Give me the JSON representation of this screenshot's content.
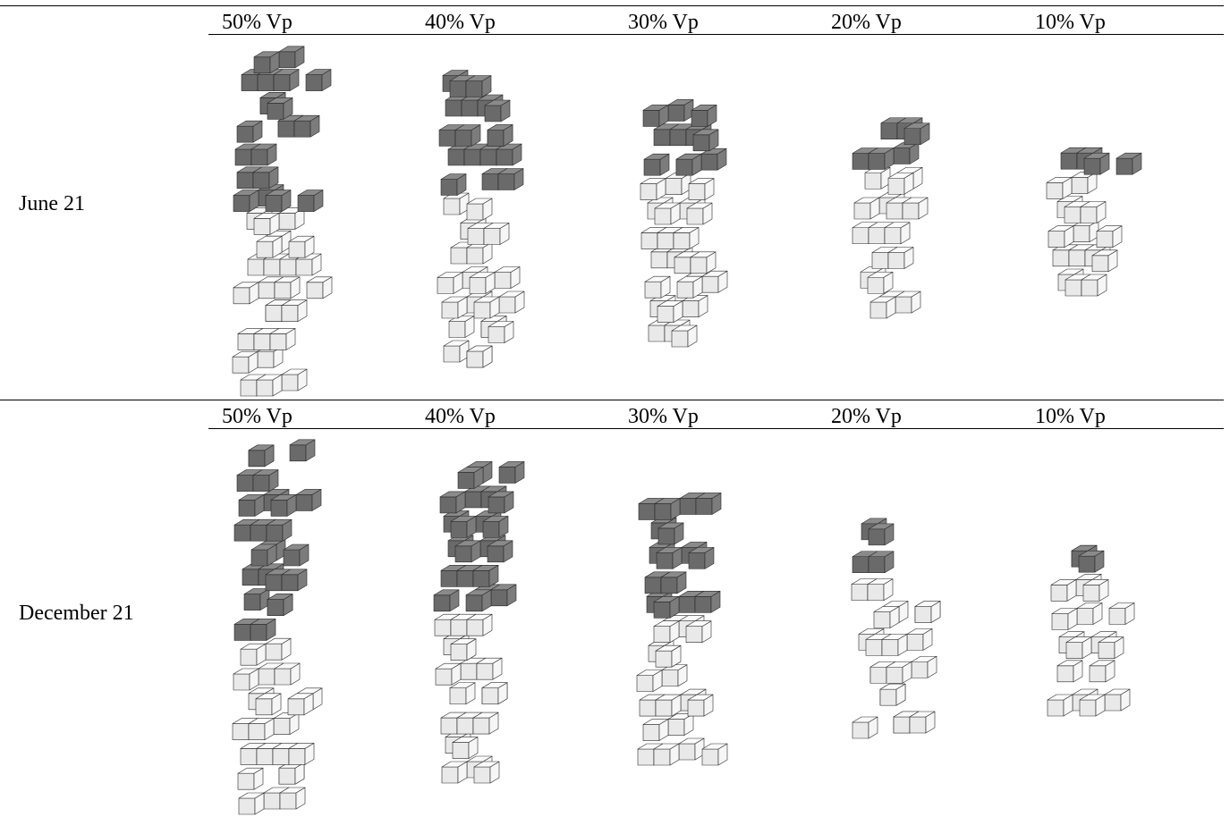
{
  "columns": [
    {
      "label": "50% Vp"
    },
    {
      "label": "40% Vp"
    },
    {
      "label": "30% Vp"
    },
    {
      "label": "20% Vp"
    },
    {
      "label": "10% Vp"
    }
  ],
  "rows": [
    {
      "label": "June 21",
      "models": [
        {
          "label": "50% Vp",
          "shaded_levels": 7,
          "unshaded_levels": 8
        },
        {
          "label": "40% Vp",
          "shaded_levels": 5,
          "unshaded_levels": 7
        },
        {
          "label": "30% Vp",
          "shaded_levels": 3,
          "unshaded_levels": 7
        },
        {
          "label": "20% Vp",
          "shaded_levels": 2,
          "unshaded_levels": 6
        },
        {
          "label": "10% Vp",
          "shaded_levels": 1,
          "unshaded_levels": 5
        }
      ]
    },
    {
      "label": "December 21",
      "models": [
        {
          "label": "50% Vp",
          "shaded_levels": 8,
          "unshaded_levels": 7
        },
        {
          "label": "40% Vp",
          "shaded_levels": 6,
          "unshaded_levels": 7
        },
        {
          "label": "30% Vp",
          "shaded_levels": 5,
          "unshaded_levels": 6
        },
        {
          "label": "20% Vp",
          "shaded_levels": 2,
          "unshaded_levels": 6
        },
        {
          "label": "10% Vp",
          "shaded_levels": 1,
          "unshaded_levels": 5
        }
      ]
    }
  ],
  "colors": {
    "shaded_top": "#8a8a8a",
    "shaded_left": "#6a6a6a",
    "shaded_right": "#7c7c7c",
    "lit_top": "#fbfbfb",
    "lit_left": "#e9e9e9",
    "lit_right": "#f6f6f6",
    "edge": "#2a2a2a"
  }
}
